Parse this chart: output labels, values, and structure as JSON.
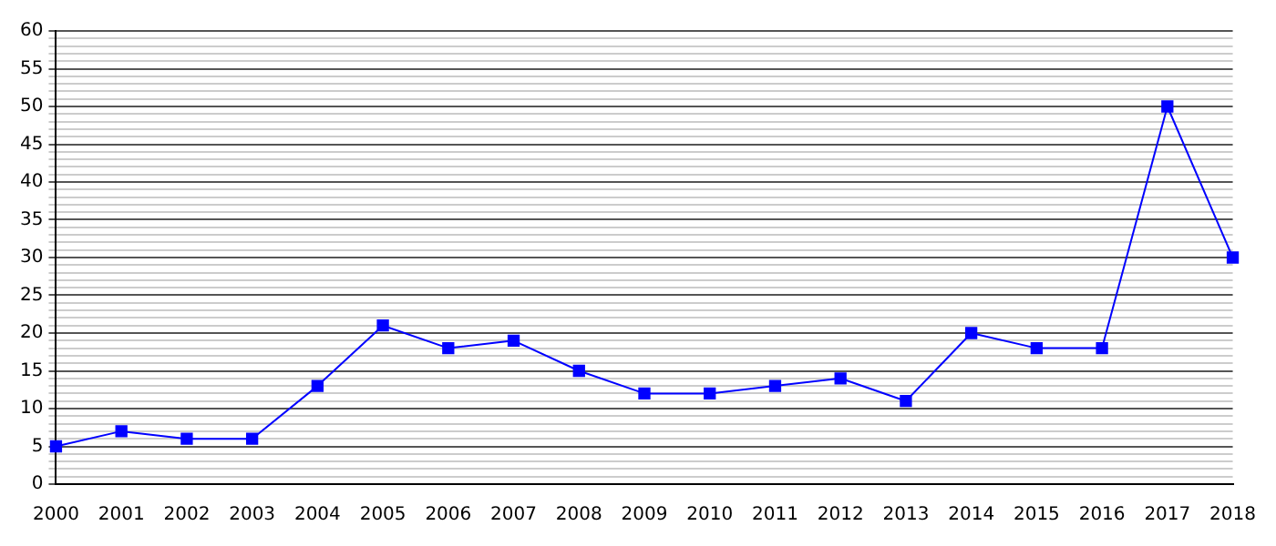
{
  "chart_data": {
    "type": "line",
    "categories": [
      "2000",
      "2001",
      "2002",
      "2003",
      "2004",
      "2005",
      "2006",
      "2007",
      "2008",
      "2009",
      "2010",
      "2011",
      "2012",
      "2013",
      "2014",
      "2015",
      "2016",
      "2017",
      "2018"
    ],
    "series": [
      {
        "color": "#0000ff",
        "values": [
          5,
          7,
          6,
          6,
          13,
          21,
          18,
          19,
          15,
          12,
          12,
          13,
          14,
          11,
          20,
          18,
          18,
          50,
          30
        ]
      }
    ],
    "ylim": [
      0,
      60
    ],
    "yticks": [
      0,
      {
        "value": 1,
        "label": null
      },
      {
        "value": 2,
        "label": null
      },
      {
        "value": 3,
        "label": null
      },
      {
        "value": 4,
        "label": null
      },
      5,
      {
        "value": 6,
        "label": null
      },
      {
        "value": 7,
        "label": null
      },
      {
        "value": 8,
        "label": null
      },
      {
        "value": 9,
        "label": null
      },
      10,
      {
        "value": 11,
        "label": null
      },
      {
        "value": 12,
        "label": null
      },
      {
        "value": 13,
        "label": null
      },
      {
        "value": 14,
        "label": null
      },
      15,
      {
        "value": 16,
        "label": null
      },
      {
        "value": 17,
        "label": null
      },
      {
        "value": 18,
        "label": null
      },
      {
        "value": 19,
        "label": null
      },
      20,
      {
        "value": 21,
        "label": null
      },
      {
        "value": 22,
        "label": null
      },
      {
        "value": 23,
        "label": null
      },
      {
        "value": 24,
        "label": null
      },
      25,
      {
        "value": 26,
        "label": null
      },
      {
        "value": 27,
        "label": null
      },
      {
        "value": 28,
        "label": null
      },
      {
        "value": 29,
        "label": null
      },
      30,
      {
        "value": 31,
        "label": null
      },
      {
        "value": 32,
        "label": null
      },
      {
        "value": 33,
        "label": null
      },
      {
        "value": 34,
        "label": null
      },
      35,
      {
        "value": 36,
        "label": null
      },
      {
        "value": 37,
        "label": null
      },
      {
        "value": 38,
        "label": null
      },
      {
        "value": 39,
        "label": null
      },
      40,
      {
        "value": 41,
        "label": null
      },
      {
        "value": 42,
        "label": null
      },
      {
        "value": 43,
        "label": null
      },
      {
        "value": 44,
        "label": null
      },
      45,
      {
        "value": 46,
        "label": null
      },
      {
        "value": 47,
        "label": null
      },
      {
        "value": 48,
        "label": null
      },
      {
        "value": 49,
        "label": null
      },
      50,
      {
        "value": 51,
        "label": null
      },
      {
        "value": 52,
        "label": null
      },
      {
        "value": 53,
        "label": null
      },
      {
        "value": 54,
        "label": null
      },
      55,
      {
        "value": 56,
        "label": null
      },
      {
        "value": 57,
        "label": null
      },
      {
        "value": 58,
        "label": null
      },
      {
        "value": 59,
        "label": null
      },
      60
    ],
    "grid": "y",
    "marker": "square",
    "line_style": "solid",
    "legend": false
  }
}
